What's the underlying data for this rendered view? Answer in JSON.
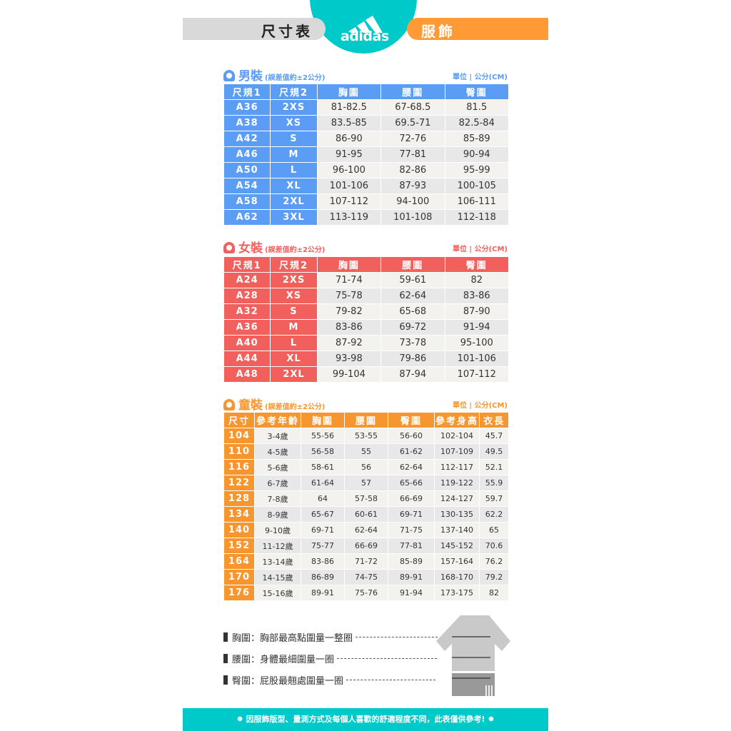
{
  "header": {
    "left_label": "尺寸表",
    "right_label": "服飾",
    "logo_text": "adidas"
  },
  "colors": {
    "teal": "#00c9c9",
    "orange": "#ff9a35",
    "men": "#5b9cf4",
    "women": "#f2605e",
    "kids": "#f7962f"
  },
  "men": {
    "title": "男裝",
    "note": "(誤差值約±2公分)",
    "unit": "單位 | 公分(CM)",
    "headers": [
      "尺規1",
      "尺規2",
      "胸圍",
      "腰圍",
      "臀圍"
    ],
    "rows": [
      [
        "A36",
        "2XS",
        "81-82.5",
        "67-68.5",
        "81.5"
      ],
      [
        "A38",
        "XS",
        "83.5-85",
        "69.5-71",
        "82.5-84"
      ],
      [
        "A42",
        "S",
        "86-90",
        "72-76",
        "85-89"
      ],
      [
        "A46",
        "M",
        "91-95",
        "77-81",
        "90-94"
      ],
      [
        "A50",
        "L",
        "96-100",
        "82-86",
        "95-99"
      ],
      [
        "A54",
        "XL",
        "101-106",
        "87-93",
        "100-105"
      ],
      [
        "A58",
        "2XL",
        "107-112",
        "94-100",
        "106-111"
      ],
      [
        "A62",
        "3XL",
        "113-119",
        "101-108",
        "112-118"
      ]
    ]
  },
  "women": {
    "title": "女裝",
    "note": "(誤差值約±2公分)",
    "unit": "單位 | 公分(CM)",
    "headers": [
      "尺規1",
      "尺規2",
      "胸圍",
      "腰圍",
      "臀圍"
    ],
    "rows": [
      [
        "A24",
        "2XS",
        "71-74",
        "59-61",
        "82"
      ],
      [
        "A28",
        "XS",
        "75-78",
        "62-64",
        "83-86"
      ],
      [
        "A32",
        "S",
        "79-82",
        "65-68",
        "87-90"
      ],
      [
        "A36",
        "M",
        "83-86",
        "69-72",
        "91-94"
      ],
      [
        "A40",
        "L",
        "87-92",
        "73-78",
        "95-100"
      ],
      [
        "A44",
        "XL",
        "93-98",
        "79-86",
        "101-106"
      ],
      [
        "A48",
        "2XL",
        "99-104",
        "87-94",
        "107-112"
      ]
    ]
  },
  "kids": {
    "title": "童裝",
    "note": "(誤差值約±2公分)",
    "unit": "單位 | 公分(CM)",
    "headers": [
      "尺寸",
      "參考年齡",
      "胸圍",
      "腰圍",
      "臀圍",
      "參考身高",
      "衣長"
    ],
    "rows": [
      [
        "104",
        "3-4歲",
        "55-56",
        "53-55",
        "56-60",
        "102-104",
        "45.7"
      ],
      [
        "110",
        "4-5歲",
        "56-58",
        "55",
        "61-62",
        "107-109",
        "49.5"
      ],
      [
        "116",
        "5-6歲",
        "58-61",
        "56",
        "62-64",
        "112-117",
        "52.1"
      ],
      [
        "122",
        "6-7歲",
        "61-64",
        "57",
        "65-66",
        "119-122",
        "55.9"
      ],
      [
        "128",
        "7-8歲",
        "64",
        "57-58",
        "66-69",
        "124-127",
        "59.7"
      ],
      [
        "134",
        "8-9歲",
        "65-67",
        "60-61",
        "69-71",
        "130-135",
        "62.2"
      ],
      [
        "140",
        "9-10歲",
        "69-71",
        "62-64",
        "71-75",
        "137-140",
        "65"
      ],
      [
        "152",
        "11-12歲",
        "75-77",
        "66-69",
        "77-81",
        "145-152",
        "70.6"
      ],
      [
        "164",
        "13-14歲",
        "83-86",
        "71-72",
        "85-89",
        "157-164",
        "76.2"
      ],
      [
        "170",
        "14-15歲",
        "86-89",
        "74-75",
        "89-91",
        "168-170",
        "79.2"
      ],
      [
        "176",
        "15-16歲",
        "89-91",
        "75-76",
        "91-94",
        "173-175",
        "82"
      ]
    ]
  },
  "legend": [
    {
      "label": "胸圍：胸部最高點圍量一整圈"
    },
    {
      "label": "腰圍：身體最細圍量一圈"
    },
    {
      "label": "臀圍：屁股最翹處圍量一圈"
    }
  ],
  "footer": "✹ 因服飾版型、量測方式及每個人喜歡的舒適程度不同，此表僅供參考! ✹"
}
